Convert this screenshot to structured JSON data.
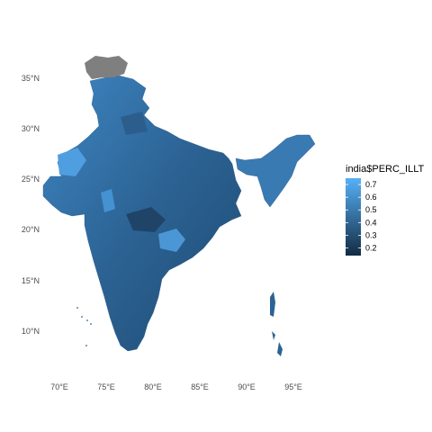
{
  "map": {
    "type": "choropleth",
    "region": "India",
    "fill_variable": "india$PERC_ILLT",
    "axes": {
      "longitude_ticks": [
        "70°E",
        "75°E",
        "80°E",
        "85°E",
        "90°E",
        "95°E"
      ],
      "latitude_ticks": [
        "35°N",
        "30°N",
        "25°N",
        "20°N",
        "15°N",
        "10°N"
      ]
    },
    "legend": {
      "title": "india$PERC_ILLT",
      "ticks": [
        "0.7",
        "0.6",
        "0.5",
        "0.4",
        "0.3",
        "0.2"
      ],
      "range": [
        0.14,
        0.75
      ],
      "low_color": "#132B43",
      "high_color": "#56B1F7",
      "placement": "right"
    },
    "na_color": "#7f7f7f",
    "grid": false
  }
}
